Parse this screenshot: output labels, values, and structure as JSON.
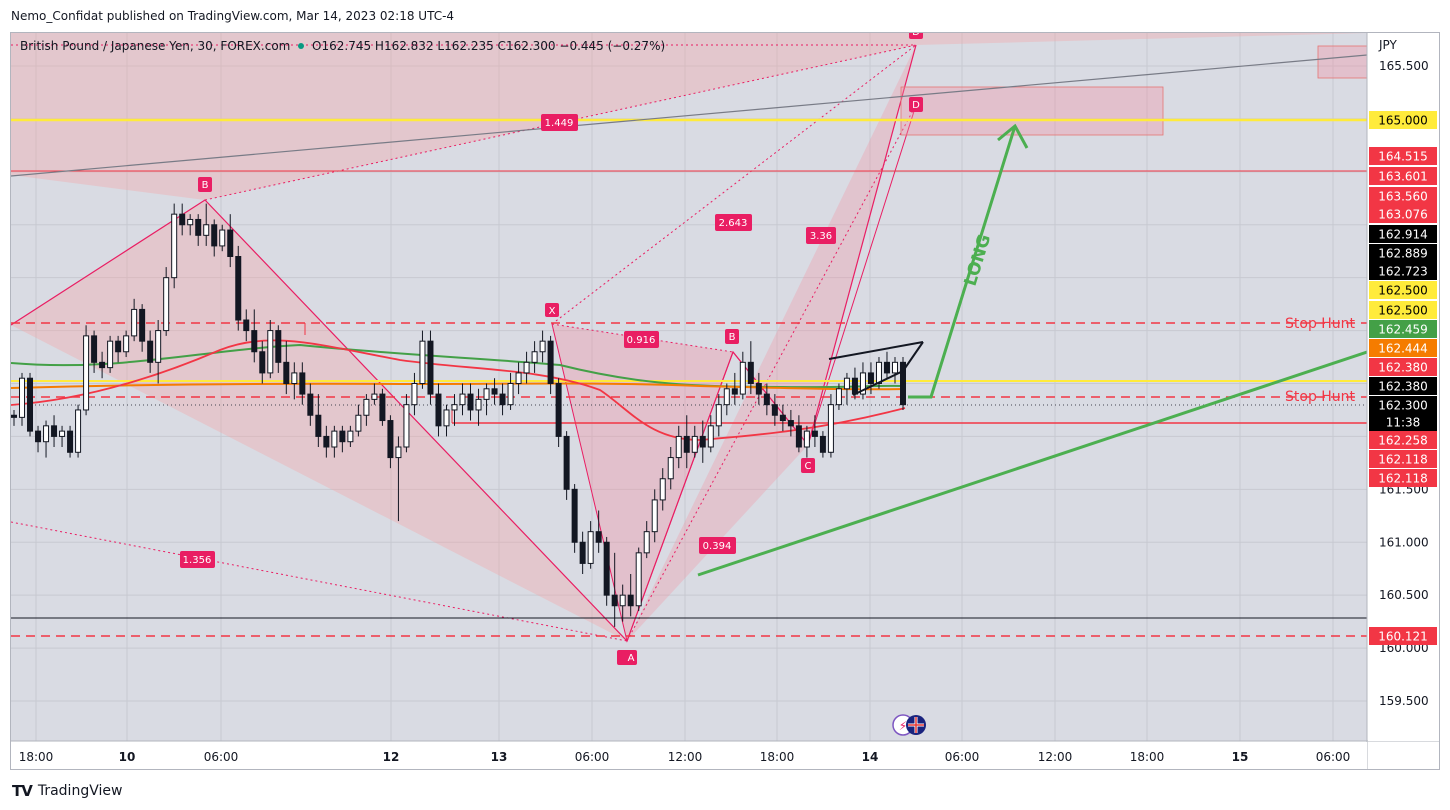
{
  "publisher": "Nemo_Confidat published on TradingView.com, Mar 14, 2023 02:18 UTC-4",
  "footer": {
    "brand": "TradingView",
    "logo": "TV"
  },
  "legend": {
    "symbol": "British Pound / Japanese Yen, 30, FOREX.com",
    "o_label": "O",
    "o": "162.745",
    "h_label": "H",
    "h": "162.832",
    "l_label": "L",
    "l": "162.235",
    "c_label": "C",
    "c": "162.300",
    "change": "−0.445 (−0.27%)"
  },
  "chart_data": {
    "type": "candlestick",
    "currency": "JPY",
    "ylim": [
      159.2,
      166.0
    ],
    "y_ticks": [
      "165.500",
      "161.500",
      "161.000",
      "160.500",
      "160.000",
      "159.500"
    ],
    "x_ticks": [
      "18:00",
      "10",
      "06:00",
      "12",
      "13",
      "06:00",
      "12:00",
      "18:00",
      "14",
      "06:00",
      "12:00",
      "18:00",
      "15",
      "06:00"
    ],
    "price_badges": [
      {
        "label": "165.000",
        "color": "#ffeb3b",
        "text": "#000000"
      },
      {
        "label": "164.515",
        "color": "#f23645",
        "text": "#ffffff"
      },
      {
        "label": "163.601",
        "color": "#f23645",
        "text": "#ffffff"
      },
      {
        "label": "163.560",
        "color": "#f23645",
        "text": "#ffffff"
      },
      {
        "label": "163.076",
        "color": "#f23645",
        "text": "#ffffff"
      },
      {
        "label": "162.914",
        "color": "#000000",
        "text": "#ffffff"
      },
      {
        "label": "162.889",
        "color": "#000000",
        "text": "#ffffff"
      },
      {
        "label": "162.723",
        "color": "#000000",
        "text": "#ffffff"
      },
      {
        "label": "162.500",
        "color": "#ffeb3b",
        "text": "#000000"
      },
      {
        "label": "162.500",
        "color": "#ffeb3b",
        "text": "#000000"
      },
      {
        "label": "162.459",
        "color": "#43a047",
        "text": "#ffffff"
      },
      {
        "label": "162.444",
        "color": "#f57c00",
        "text": "#ffffff"
      },
      {
        "label": "162.380",
        "color": "#f23645",
        "text": "#ffffff"
      },
      {
        "label": "162.380",
        "color": "#000000",
        "text": "#ffffff"
      },
      {
        "label": "162.300",
        "color": "#000000",
        "text": "#ffffff"
      },
      {
        "label": "11:38",
        "color": "#000000",
        "text": "#ffffff"
      },
      {
        "label": "162.258",
        "color": "#f23645",
        "text": "#ffffff"
      },
      {
        "label": "162.118",
        "color": "#f23645",
        "text": "#ffffff"
      },
      {
        "label": "162.118",
        "color": "#f23645",
        "text": "#ffffff"
      },
      {
        "label": "160.121",
        "color": "#f23645",
        "text": "#ffffff"
      }
    ],
    "pattern_points": [
      "X",
      "A",
      "B",
      "C",
      "D",
      "B",
      "A",
      "D"
    ],
    "ratios": [
      "1.356",
      "0.916",
      "2.643",
      "3.36",
      "0.394",
      "1.449"
    ],
    "annotations": [
      "Stop Hunt",
      "Stop Hunt",
      "LONG"
    ],
    "series": [
      {
        "name": "",
        "color": "#f23645"
      },
      {
        "name": "",
        "color": "#43a047"
      },
      {
        "name": "",
        "color": "#f57c00"
      }
    ],
    "candles": [
      [
        162.2,
        162.25,
        162.1,
        162.18
      ],
      [
        162.18,
        162.6,
        162.1,
        162.55
      ],
      [
        162.55,
        162.6,
        162.0,
        162.05
      ],
      [
        162.05,
        162.1,
        161.85,
        161.95
      ],
      [
        161.95,
        162.15,
        161.8,
        162.1
      ],
      [
        162.1,
        162.2,
        161.9,
        162.0
      ],
      [
        162.0,
        162.1,
        161.9,
        162.05
      ],
      [
        162.05,
        162.1,
        161.8,
        161.85
      ],
      [
        161.85,
        162.3,
        161.8,
        162.25
      ],
      [
        162.25,
        163.05,
        162.2,
        162.95
      ],
      [
        162.95,
        163.0,
        162.6,
        162.7
      ],
      [
        162.7,
        162.8,
        162.55,
        162.65
      ],
      [
        162.65,
        162.95,
        162.6,
        162.9
      ],
      [
        162.9,
        162.95,
        162.7,
        162.8
      ],
      [
        162.8,
        163.0,
        162.75,
        162.95
      ],
      [
        162.95,
        163.3,
        162.9,
        163.2
      ],
      [
        163.2,
        163.25,
        162.8,
        162.9
      ],
      [
        162.9,
        163.0,
        162.6,
        162.7
      ],
      [
        162.7,
        163.1,
        162.5,
        163.0
      ],
      [
        163.0,
        163.6,
        162.95,
        163.5
      ],
      [
        163.5,
        164.2,
        163.4,
        164.1
      ],
      [
        164.1,
        164.2,
        163.9,
        164.0
      ],
      [
        164.0,
        164.1,
        163.9,
        164.05
      ],
      [
        164.05,
        164.1,
        163.8,
        163.9
      ],
      [
        163.9,
        164.2,
        163.8,
        164.0
      ],
      [
        164.0,
        164.05,
        163.7,
        163.8
      ],
      [
        163.8,
        164.0,
        163.75,
        163.95
      ],
      [
        163.95,
        164.1,
        163.6,
        163.7
      ],
      [
        163.7,
        163.8,
        163.0,
        163.1
      ],
      [
        163.1,
        163.2,
        162.9,
        163.0
      ],
      [
        163.0,
        163.2,
        162.7,
        162.8
      ],
      [
        162.8,
        162.9,
        162.5,
        162.6
      ],
      [
        162.6,
        163.1,
        162.55,
        163.0
      ],
      [
        163.0,
        163.05,
        162.6,
        162.7
      ],
      [
        162.7,
        162.9,
        162.4,
        162.5
      ],
      [
        162.5,
        162.7,
        162.35,
        162.6
      ],
      [
        162.6,
        162.7,
        162.3,
        162.4
      ],
      [
        162.4,
        162.5,
        162.1,
        162.2
      ],
      [
        162.2,
        162.4,
        161.9,
        162.0
      ],
      [
        162.0,
        162.1,
        161.8,
        161.9
      ],
      [
        161.9,
        162.1,
        161.8,
        162.05
      ],
      [
        162.05,
        162.1,
        161.85,
        161.95
      ],
      [
        161.95,
        162.1,
        161.9,
        162.05
      ],
      [
        162.05,
        162.3,
        162.0,
        162.2
      ],
      [
        162.2,
        162.4,
        162.1,
        162.35
      ],
      [
        162.35,
        162.5,
        162.3,
        162.4
      ],
      [
        162.4,
        162.45,
        162.1,
        162.15
      ],
      [
        162.15,
        162.2,
        161.7,
        161.8
      ],
      [
        161.8,
        162.0,
        161.2,
        161.9
      ],
      [
        161.9,
        162.4,
        161.85,
        162.3
      ],
      [
        162.3,
        162.6,
        162.2,
        162.5
      ],
      [
        162.5,
        163.0,
        162.45,
        162.9
      ],
      [
        162.9,
        163.0,
        162.3,
        162.4
      ],
      [
        162.4,
        162.5,
        162.0,
        162.1
      ],
      [
        162.1,
        162.3,
        162.0,
        162.25
      ],
      [
        162.25,
        162.4,
        162.1,
        162.3
      ],
      [
        162.3,
        162.5,
        162.2,
        162.4
      ],
      [
        162.4,
        162.5,
        162.15,
        162.25
      ],
      [
        162.25,
        162.45,
        162.1,
        162.35
      ],
      [
        162.35,
        162.5,
        162.2,
        162.45
      ],
      [
        162.45,
        162.55,
        162.3,
        162.4
      ],
      [
        162.4,
        162.5,
        162.2,
        162.3
      ],
      [
        162.3,
        162.6,
        162.25,
        162.5
      ],
      [
        162.5,
        162.7,
        162.4,
        162.6
      ],
      [
        162.6,
        162.8,
        162.5,
        162.7
      ],
      [
        162.7,
        162.9,
        162.6,
        162.8
      ],
      [
        162.8,
        163.0,
        162.7,
        162.9
      ],
      [
        162.9,
        162.95,
        162.4,
        162.5
      ],
      [
        162.5,
        162.55,
        161.9,
        162.0
      ],
      [
        162.0,
        162.05,
        161.4,
        161.5
      ],
      [
        161.5,
        161.55,
        160.9,
        161.0
      ],
      [
        161.0,
        161.1,
        160.7,
        160.8
      ],
      [
        160.8,
        161.2,
        160.75,
        161.1
      ],
      [
        161.1,
        161.3,
        160.9,
        161.0
      ],
      [
        161.0,
        161.05,
        160.4,
        160.5
      ],
      [
        160.5,
        160.9,
        160.2,
        160.4
      ],
      [
        160.4,
        160.6,
        160.25,
        160.5
      ],
      [
        160.5,
        160.7,
        160.3,
        160.4
      ],
      [
        160.4,
        160.95,
        160.35,
        160.9
      ],
      [
        160.9,
        161.2,
        160.85,
        161.1
      ],
      [
        161.1,
        161.5,
        161.0,
        161.4
      ],
      [
        161.4,
        161.7,
        161.3,
        161.6
      ],
      [
        161.6,
        161.9,
        161.5,
        161.8
      ],
      [
        161.8,
        162.1,
        161.7,
        162.0
      ],
      [
        162.0,
        162.2,
        161.7,
        161.85
      ],
      [
        161.85,
        162.1,
        161.8,
        162.0
      ],
      [
        162.0,
        162.15,
        161.75,
        161.9
      ],
      [
        161.9,
        162.2,
        161.85,
        162.1
      ],
      [
        162.1,
        162.4,
        162.0,
        162.3
      ],
      [
        162.3,
        162.5,
        162.2,
        162.45
      ],
      [
        162.45,
        162.6,
        162.3,
        162.4
      ],
      [
        162.4,
        162.8,
        162.35,
        162.7
      ],
      [
        162.7,
        162.9,
        162.4,
        162.5
      ],
      [
        162.5,
        162.6,
        162.3,
        162.4
      ],
      [
        162.4,
        162.5,
        162.2,
        162.3
      ],
      [
        162.3,
        162.4,
        162.1,
        162.2
      ],
      [
        162.2,
        162.3,
        162.05,
        162.15
      ],
      [
        162.15,
        162.25,
        162.0,
        162.1
      ],
      [
        162.1,
        162.2,
        161.85,
        161.9
      ],
      [
        161.9,
        162.1,
        161.8,
        162.05
      ],
      [
        162.05,
        162.2,
        161.9,
        162.0
      ],
      [
        162.0,
        162.05,
        161.8,
        161.85
      ],
      [
        161.85,
        162.4,
        161.8,
        162.3
      ],
      [
        162.3,
        162.5,
        162.25,
        162.45
      ],
      [
        162.45,
        162.6,
        162.3,
        162.55
      ],
      [
        162.55,
        162.65,
        162.35,
        162.4
      ],
      [
        162.4,
        162.7,
        162.35,
        162.6
      ],
      [
        162.6,
        162.7,
        162.4,
        162.5
      ],
      [
        162.5,
        162.75,
        162.45,
        162.7
      ],
      [
        162.7,
        162.8,
        162.55,
        162.6
      ],
      [
        162.6,
        162.75,
        162.5,
        162.7
      ],
      [
        162.7,
        162.75,
        162.25,
        162.3
      ]
    ]
  }
}
